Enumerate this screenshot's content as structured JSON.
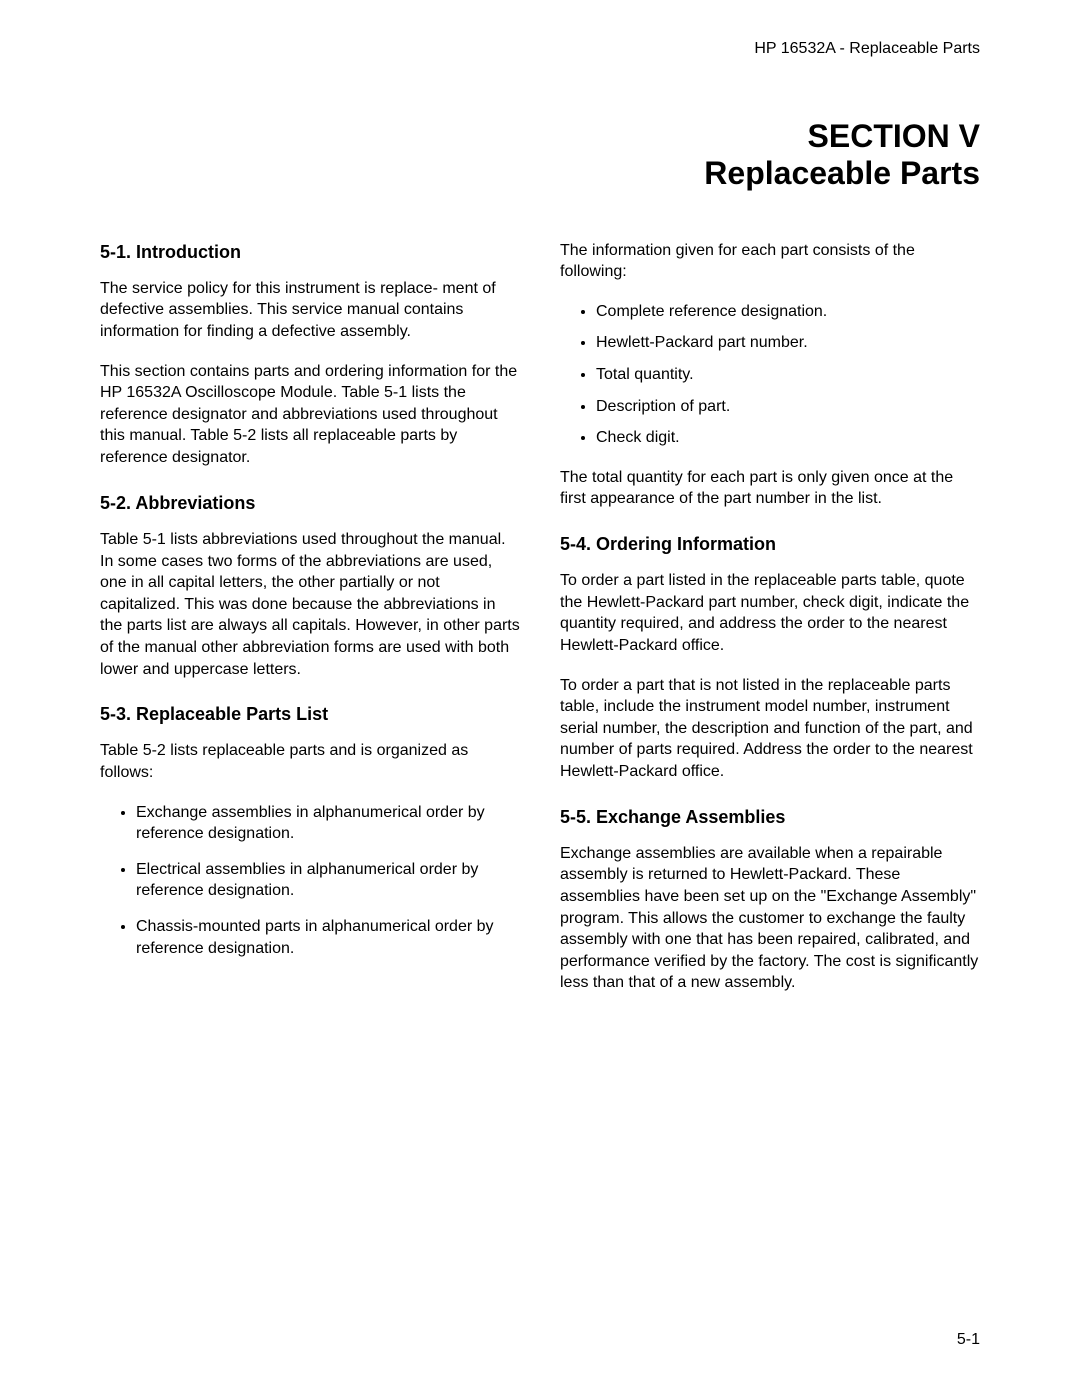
{
  "header": {
    "doc_title": "HP 16532A - Replaceable Parts"
  },
  "section_title": {
    "line1": "SECTION  V",
    "line2": "Replaceable Parts"
  },
  "left_col": {
    "s1": {
      "heading": "5-1.  Introduction",
      "p1": "The service policy for this instrument is replace- ment of defective assemblies.  This service manual contains information for finding a defective assembly.",
      "p2": "This section contains parts and ordering information for the HP 16532A Oscilloscope Module.  Table 5-1 lists the reference designator and abbreviations used throughout this manual.  Table 5-2 lists all replaceable parts by reference designator."
    },
    "s2": {
      "heading": "5-2.  Abbreviations",
      "p1": "Table 5-1 lists abbreviations used throughout the manual.  In some cases two forms of the abbreviations are used, one in all capital letters, the other partially or not capitalized.  This was done because the abbreviations in the parts list are always all capitals.  However, in other parts of the manual other abbreviation forms are used with both lower and uppercase letters."
    },
    "s3": {
      "heading": "5-3.  Replaceable Parts List",
      "p1": "Table 5-2 lists replaceable parts and is organized as follows:",
      "bullets": [
        "Exchange assemblies in alphanumerical order by reference designation.",
        "Electrical assemblies in alphanumerical order by reference designation.",
        "Chassis-mounted parts in alphanumerical order by reference designation."
      ]
    }
  },
  "right_col": {
    "intro": {
      "p1": "The information given for each part consists of the following:",
      "bullets": [
        "Complete reference designation.",
        "Hewlett-Packard part number.",
        "Total quantity.",
        "Description of part.",
        "Check digit."
      ],
      "p2": "The total quantity for each part is only given once at the first appearance of the part number in the list."
    },
    "s4": {
      "heading": "5-4.  Ordering Information",
      "p1": "To order a part listed in the replaceable parts table, quote the Hewlett-Packard part number, check digit, indicate the quantity required, and address the order to the nearest Hewlett-Packard office.",
      "p2": "To order a part that is not listed in the replaceable parts table, include the instrument model number, instrument serial number, the description and function of the part, and number of parts required.  Address the order to the nearest Hewlett-Packard office."
    },
    "s5": {
      "heading": "5-5.  Exchange Assemblies",
      "p1": "Exchange assemblies are available when a repairable assembly is returned to Hewlett-Packard.  These assemblies have been set up on the \"Exchange Assembly\" program.  This allows the customer to exchange the faulty assembly with one that has been repaired, calibrated, and performance verified by the factory.  The cost is significantly less than that of a new assembly."
    }
  },
  "page_number": "5-1",
  "style": {
    "page_bg": "#ffffff",
    "text_color": "#000000",
    "heading_fontsize_pt": 18,
    "body_fontsize_pt": 16,
    "title_fontsize_pt": 32,
    "font_family": "Arial"
  }
}
